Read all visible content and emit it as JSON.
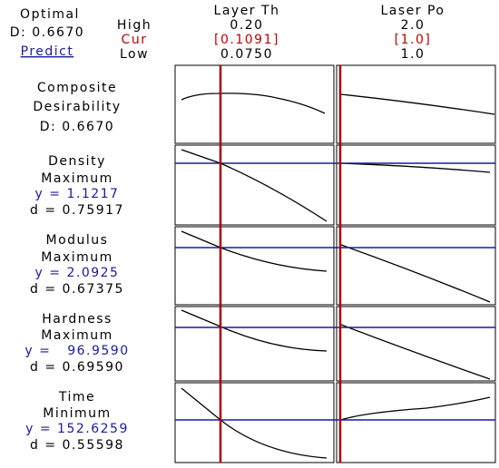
{
  "chart_data": {
    "type": "optimizer",
    "optimal_label": "Optimal",
    "d_label": "D: 0.6670",
    "predict": "Predict",
    "row_labels": [
      "High",
      "Cur",
      "Low"
    ],
    "factors": [
      {
        "name": "Layer Th",
        "high": "0.20",
        "cur": "[0.1091]",
        "low": "0.0750"
      },
      {
        "name": "Laser Po",
        "high": "2.0",
        "cur": "[1.0]",
        "low": "1.0"
      }
    ],
    "composite": [
      "Composite",
      "Desirability",
      "D: 0.6670"
    ],
    "responses": [
      {
        "name": "Density",
        "goal": "Maximum",
        "y": "y = 1.1217",
        "d": "d = 0.75917"
      },
      {
        "name": "Modulus",
        "goal": "Maximum",
        "y": "y = 2.0925",
        "d": "d = 0.67375"
      },
      {
        "name": "Hardness",
        "goal": "Maximum",
        "y": "y =   96.9590",
        "d": "d = 0.69590"
      },
      {
        "name": "Time",
        "goal": "Minimum",
        "y": "y = 152.6259",
        "d": "d = 0.55598"
      }
    ]
  }
}
